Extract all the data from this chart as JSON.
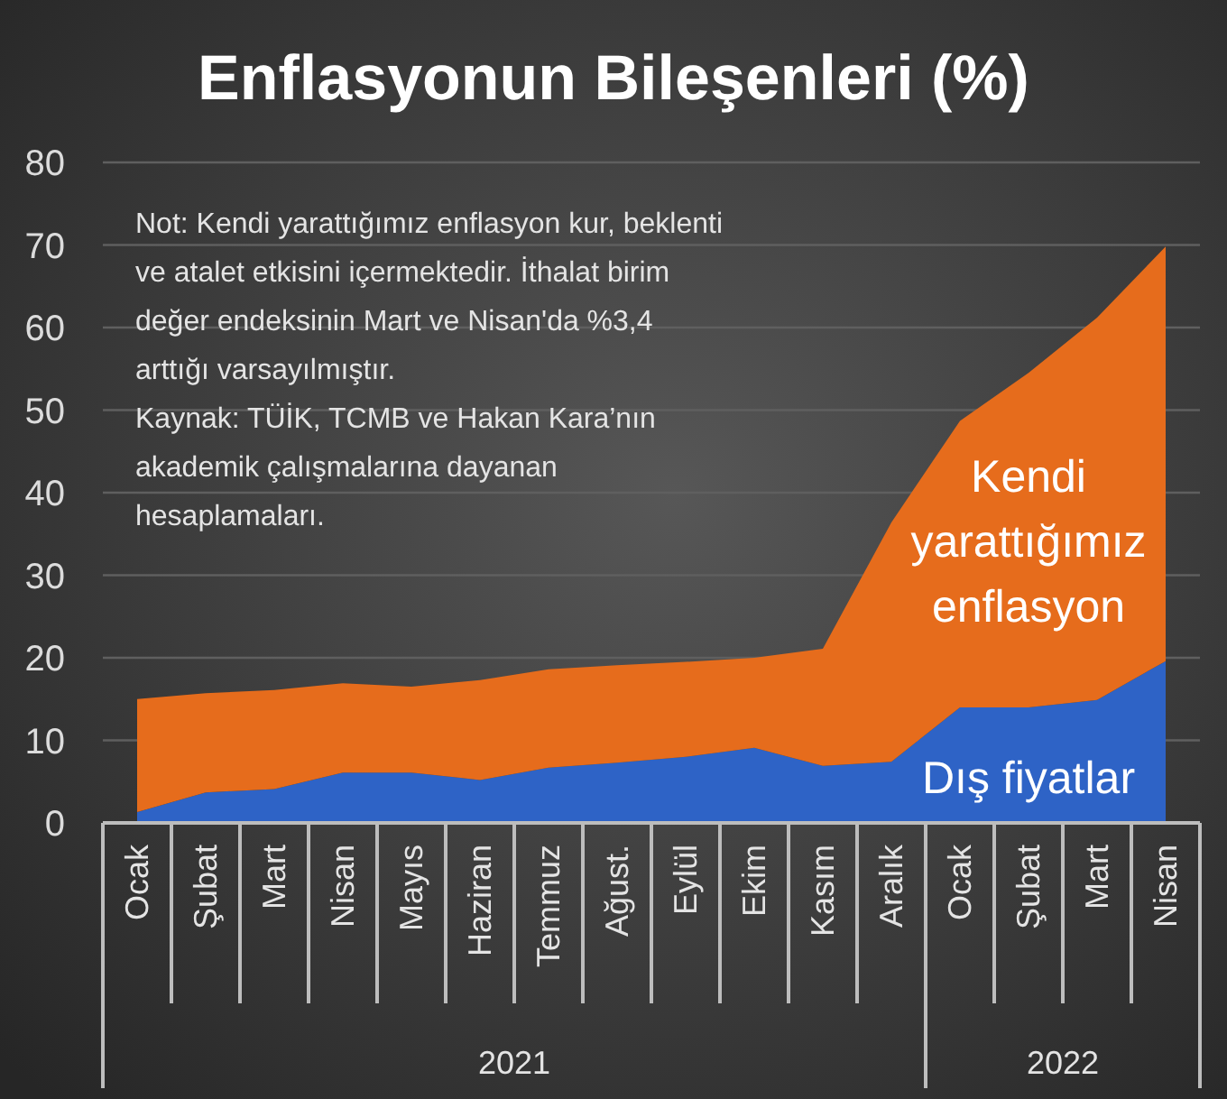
{
  "chart_data": {
    "type": "area",
    "title": "Enflasyonun Bileşenleri (%)",
    "categories": [
      "Ocak",
      "Şubat",
      "Mart",
      "Nisan",
      "Mayıs",
      "Haziran",
      "Temmuz",
      "Ağust.",
      "Eylül",
      "Ekim",
      "Kasım",
      "Aralık",
      "Ocak",
      "Şubat",
      "Mart",
      "Nisan"
    ],
    "stacked": true,
    "series": [
      {
        "name": "Dış fiyatlar",
        "color": "#2e63c6",
        "values": [
          1.3,
          3.7,
          4.1,
          6.1,
          6.1,
          5.2,
          6.7,
          7.3,
          8.0,
          9.1,
          6.9,
          7.4,
          14.0,
          14.0,
          14.9,
          19.6
        ]
      },
      {
        "name": "Kendi yarattığımız enflasyon",
        "color": "#e66c1c",
        "values": [
          13.7,
          12.0,
          12.0,
          10.8,
          10.4,
          12.1,
          11.9,
          11.8,
          11.5,
          10.9,
          14.2,
          29.0,
          34.7,
          40.5,
          46.3,
          50.2
        ]
      }
    ],
    "ylim": [
      0,
      80
    ],
    "yticks": [
      0,
      10,
      20,
      30,
      40,
      50,
      60,
      70,
      80
    ],
    "grid": "y",
    "legend": false,
    "annotations": [
      "Not: Kendi yarattığımız enflasyon kur, beklenti ve atalet etkisini içermektedir. İthalat birim değer endeksinin Mart ve Nisan'da %3,4 arttığı varsayılmıştır.",
      "Kaynak: TÜİK, TCMB ve Hakan Kara’nın akademik çalışmalarına dayanan hesaplamaları.",
      "2021",
      "2022"
    ]
  }
}
